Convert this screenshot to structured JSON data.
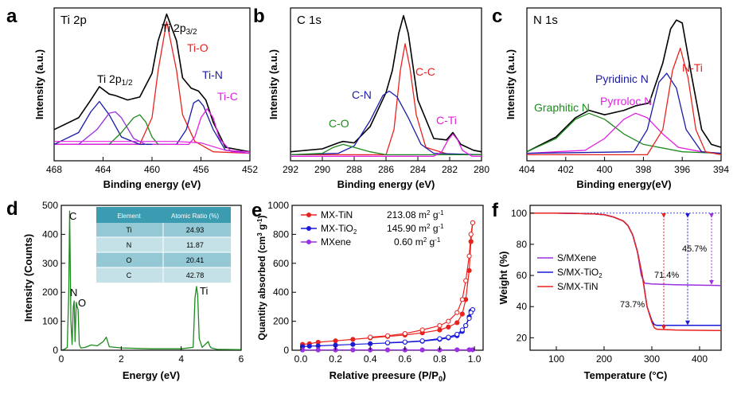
{
  "panels": [
    {
      "letter": "a",
      "title": "Ti 2p",
      "xlabel": "Binding energy (eV)",
      "ylabel": "Intensity (a.u.)",
      "xlim": [
        468,
        452
      ],
      "xticks": [
        "468",
        "464",
        "460",
        "456",
        "452"
      ],
      "peaks": [
        {
          "label": "Ti 2p",
          "sub": "3/2",
          "color": "#000000"
        },
        {
          "label": "Ti-O",
          "color": "#e8231f"
        },
        {
          "label": "Ti-N",
          "color": "#1a1aa8"
        },
        {
          "label": "Ti-C",
          "color": "#e020e0"
        },
        {
          "label": "Ti 2p",
          "sub": "1/2",
          "color": "#000000"
        }
      ]
    },
    {
      "letter": "b",
      "title": "C 1s",
      "xlabel": "Binding energy (eV)",
      "ylabel": "Intensity (a.u.)",
      "xlim": [
        292,
        280
      ],
      "xticks": [
        "292",
        "290",
        "288",
        "286",
        "284",
        "282",
        "280"
      ],
      "peaks": [
        {
          "label": "C-C",
          "color": "#e8231f"
        },
        {
          "label": "C-N",
          "color": "#1a1aa8"
        },
        {
          "label": "C-O",
          "color": "#1d8a1d"
        },
        {
          "label": "C-Ti",
          "color": "#e020e0"
        }
      ]
    },
    {
      "letter": "c",
      "title": "N 1s",
      "xlabel": "Binding energy(eV)",
      "ylabel": "Intensity (a.u.)",
      "xlim": [
        404,
        394
      ],
      "xticks": [
        "404",
        "402",
        "400",
        "398",
        "396",
        "394"
      ],
      "peaks": [
        {
          "label": "Pyridinic N",
          "color": "#1a1aa8"
        },
        {
          "label": "N-Ti",
          "color": "#e8231f"
        },
        {
          "label": "Graphitic N",
          "color": "#1d8a1d"
        },
        {
          "label": "Pyrroloc N",
          "color": "#e020e0"
        }
      ]
    },
    {
      "letter": "d",
      "xlabel": "Energy (eV)",
      "ylabel": "Intensity (Counts)",
      "xticks": [
        "0",
        "2",
        "4",
        "6"
      ],
      "yticks": [
        "0",
        "100",
        "200",
        "300",
        "400",
        "500"
      ],
      "peak_labels": [
        "C",
        "N",
        "O",
        "Ti"
      ],
      "table": {
        "headers": [
          "Element",
          "Atomic Ratio (%)"
        ],
        "rows": [
          [
            "Ti",
            "24.93"
          ],
          [
            "N",
            "11.87"
          ],
          [
            "O",
            "20.41"
          ],
          [
            "C",
            "42.78"
          ]
        ]
      }
    },
    {
      "letter": "e",
      "xlabel": "Relative preesure (P/P",
      "xlabel_sub": "0",
      "xlabel_end": ")",
      "ylabel": "Quantity absorbed (cm",
      "ylabel_sup": "3",
      "ylabel_end": " g",
      "ylabel_sup2": "-1",
      "ylabel_close": ")",
      "xticks": [
        "0.0",
        "0.2",
        "0.4",
        "0.6",
        "0.8",
        "1.0"
      ],
      "yticks": [
        "0",
        "200",
        "400",
        "600",
        "800",
        "1000"
      ],
      "legend": [
        {
          "name": "MX-TiN",
          "value": "213.08 m",
          "sup": "2",
          "unit": " g",
          "sup2": "-1",
          "color": "#e8231f"
        },
        {
          "name": "MX-TiO",
          "name_sub": "2",
          "value": "145.90 m",
          "sup": "2",
          "unit": " g",
          "sup2": "-1",
          "color": "#1a1ad8"
        },
        {
          "name": "MXene",
          "value": "0.60 m",
          "sup": "2",
          "unit": " g",
          "sup2": "-1",
          "color": "#9a30e0"
        }
      ]
    },
    {
      "letter": "f",
      "xlabel": "Temperature (°C)",
      "ylabel": "Weight (%)",
      "xticks": [
        "100",
        "200",
        "300",
        "400"
      ],
      "yticks": [
        "20",
        "40",
        "60",
        "80",
        "100"
      ],
      "legend": [
        {
          "name": "S/MXene",
          "color": "#9a30e0"
        },
        {
          "name": "S/MX-TiO",
          "name_sub": "2",
          "color": "#1a1ad8"
        },
        {
          "name": "S/MX-TiN",
          "color": "#e8231f"
        }
      ],
      "annotations": [
        "45.7%",
        "71.4%",
        "73.7%"
      ]
    }
  ],
  "chart_data": [
    {
      "panel": "a",
      "type": "line",
      "x_range": [
        468,
        452
      ],
      "series": [
        {
          "name": "Ti 2p",
          "x": [
            468,
            466,
            465,
            464.3,
            463.5,
            463,
            462,
            461,
            460,
            459.5,
            458.8,
            458,
            457.5,
            456.8,
            456.2,
            455.6,
            455,
            454,
            452
          ],
          "y": [
            0.2,
            0.28,
            0.4,
            0.49,
            0.44,
            0.43,
            0.4,
            0.42,
            0.58,
            0.8,
            0.98,
            0.8,
            0.55,
            0.48,
            0.46,
            0.4,
            0.25,
            0.08,
            0.05
          ]
        },
        {
          "name": "Ti-O",
          "x": [
            468,
            461,
            460,
            459.5,
            458.8,
            458,
            457.5,
            456.5,
            455,
            452
          ],
          "y": [
            0.1,
            0.1,
            0.28,
            0.6,
            0.93,
            0.6,
            0.3,
            0.12,
            0.05,
            0.04
          ]
        },
        {
          "name": "Ti-N",
          "x": [
            468,
            458,
            457.2,
            456.6,
            456.2,
            455.8,
            455,
            454,
            452
          ],
          "y": [
            0.1,
            0.1,
            0.2,
            0.38,
            0.4,
            0.36,
            0.2,
            0.06,
            0.04
          ]
        },
        {
          "name": "Ti-C",
          "x": [
            468,
            457,
            456.5,
            456,
            455.5,
            455,
            454.5,
            453.5,
            452
          ],
          "y": [
            0.1,
            0.1,
            0.15,
            0.28,
            0.34,
            0.28,
            0.14,
            0.05,
            0.04
          ]
        },
        {
          "name": "Ti 2p 1/2 (blue)",
          "x": [
            468,
            466,
            465,
            464.3,
            463.5,
            462.5,
            461,
            460
          ],
          "y": [
            0.1,
            0.18,
            0.32,
            0.39,
            0.3,
            0.15,
            0.1,
            0.1
          ]
        },
        {
          "name": "Ti 2p 1/2 (purple)",
          "x": [
            466,
            464.5,
            463.5,
            463,
            462.5,
            461.5,
            460.5
          ],
          "y": [
            0.1,
            0.2,
            0.31,
            0.32,
            0.28,
            0.14,
            0.1
          ]
        },
        {
          "name": "Ti 2p 1/2 (green)",
          "x": [
            463.5,
            462.5,
            461.5,
            461,
            460.5,
            460,
            459.5
          ],
          "y": [
            0.1,
            0.18,
            0.28,
            0.3,
            0.25,
            0.15,
            0.1
          ]
        }
      ]
    },
    {
      "panel": "b",
      "type": "line",
      "x_range": [
        292,
        280
      ],
      "series": [
        {
          "name": "C 1s",
          "x": [
            292,
            290,
            289,
            288.7,
            288,
            287,
            286,
            285.6,
            285.2,
            284.9,
            284.6,
            284,
            283,
            282.2,
            281.8,
            281.3,
            280.5,
            280
          ],
          "y": [
            0.05,
            0.07,
            0.11,
            0.12,
            0.11,
            0.22,
            0.45,
            0.6,
            0.85,
            0.97,
            0.85,
            0.4,
            0.14,
            0.13,
            0.18,
            0.1,
            0.06,
            0.05
          ]
        },
        {
          "name": "C-C",
          "x": [
            292,
            286,
            285.5,
            285.1,
            284.8,
            284.5,
            284.1,
            283.5,
            282,
            280
          ],
          "y": [
            0.03,
            0.03,
            0.2,
            0.6,
            0.78,
            0.62,
            0.3,
            0.08,
            0.03,
            0.03
          ]
        },
        {
          "name": "C-N",
          "x": [
            292,
            289,
            288,
            287,
            286.2,
            285.8,
            285.3,
            284.6,
            283.8,
            283,
            280
          ],
          "y": [
            0.03,
            0.04,
            0.09,
            0.26,
            0.43,
            0.46,
            0.42,
            0.28,
            0.1,
            0.04,
            0.03
          ]
        },
        {
          "name": "C-O",
          "x": [
            292,
            290,
            289.3,
            288.7,
            288,
            287,
            286,
            280
          ],
          "y": [
            0.03,
            0.04,
            0.08,
            0.1,
            0.08,
            0.05,
            0.03,
            0.03
          ]
        },
        {
          "name": "C-Ti",
          "x": [
            292,
            283,
            282.5,
            282.1,
            281.8,
            281.5,
            281.2,
            280.6,
            280
          ],
          "y": [
            0.02,
            0.02,
            0.05,
            0.13,
            0.17,
            0.13,
            0.06,
            0.02,
            0.02
          ]
        }
      ]
    },
    {
      "panel": "c",
      "type": "line",
      "x_range": [
        404,
        394
      ],
      "series": [
        {
          "name": "N 1s",
          "x": [
            404,
            402.5,
            401.5,
            400.8,
            400,
            399,
            398.4,
            397.7,
            397,
            396.6,
            396.3,
            396,
            395.5,
            395,
            394.5,
            394
          ],
          "y": [
            0.05,
            0.15,
            0.28,
            0.33,
            0.3,
            0.33,
            0.36,
            0.38,
            0.65,
            0.88,
            0.94,
            0.92,
            0.55,
            0.2,
            0.1,
            0.08
          ]
        },
        {
          "name": "Graphitic N",
          "x": [
            404,
            402.5,
            401.5,
            400.8,
            400,
            399,
            398,
            396,
            394
          ],
          "y": [
            0.05,
            0.14,
            0.27,
            0.31,
            0.27,
            0.17,
            0.1,
            0.05,
            0.04
          ]
        },
        {
          "name": "Pyrroloc N",
          "x": [
            404,
            401,
            400,
            399,
            398.4,
            397.8,
            397,
            396.2,
            395,
            394
          ],
          "y": [
            0.04,
            0.06,
            0.14,
            0.27,
            0.31,
            0.28,
            0.17,
            0.08,
            0.05,
            0.04
          ]
        },
        {
          "name": "Pyridinic N",
          "x": [
            404,
            398.5,
            397.8,
            397.2,
            396.8,
            396.3,
            395.8,
            395,
            394
          ],
          "y": [
            0.04,
            0.05,
            0.2,
            0.52,
            0.58,
            0.48,
            0.2,
            0.05,
            0.04
          ]
        },
        {
          "name": "N-Ti",
          "x": [
            404,
            397.8,
            397,
            396.5,
            396.1,
            395.7,
            395.3,
            394.8,
            394
          ],
          "y": [
            0.03,
            0.03,
            0.2,
            0.6,
            0.75,
            0.55,
            0.2,
            0.05,
            0.03
          ]
        }
      ]
    },
    {
      "panel": "d",
      "type": "line",
      "x_range": [
        0,
        6
      ],
      "y_range": [
        0,
        500
      ],
      "series": [
        {
          "name": "EDS",
          "x": [
            0,
            0.1,
            0.2,
            0.25,
            0.28,
            0.32,
            0.36,
            0.4,
            0.43,
            0.46,
            0.5,
            0.53,
            0.56,
            0.6,
            0.65,
            0.8,
            1.0,
            1.2,
            1.4,
            1.5,
            1.6,
            2.0,
            3.0,
            4.0,
            4.4,
            4.46,
            4.51,
            4.55,
            4.6,
            4.7,
            4.9,
            4.95,
            5.0,
            5.2,
            6.0
          ],
          "y": [
            0,
            3,
            10,
            200,
            480,
            100,
            20,
            150,
            170,
            30,
            165,
            150,
            140,
            20,
            8,
            10,
            18,
            15,
            30,
            45,
            12,
            8,
            5,
            5,
            10,
            180,
            220,
            190,
            40,
            10,
            30,
            15,
            8,
            3,
            2
          ]
        }
      ]
    },
    {
      "panel": "e",
      "type": "line",
      "x_range": [
        0,
        1
      ],
      "y_range": [
        0,
        1000
      ],
      "series": [
        {
          "name": "MX-TiN adsorption",
          "x": [
            0.01,
            0.05,
            0.1,
            0.2,
            0.3,
            0.4,
            0.5,
            0.6,
            0.7,
            0.8,
            0.85,
            0.9,
            0.93,
            0.95,
            0.97,
            0.98,
            0.99
          ],
          "y": [
            40,
            45,
            55,
            65,
            75,
            85,
            95,
            105,
            120,
            140,
            160,
            190,
            250,
            350,
            550,
            750,
            880
          ]
        },
        {
          "name": "MX-TiN desorption",
          "x": [
            0.99,
            0.98,
            0.97,
            0.95,
            0.93,
            0.9,
            0.85,
            0.8,
            0.7,
            0.6,
            0.5,
            0.4
          ],
          "y": [
            880,
            800,
            650,
            480,
            350,
            260,
            200,
            170,
            140,
            115,
            100,
            90
          ]
        },
        {
          "name": "MX-TiO2 adsorption",
          "x": [
            0.01,
            0.05,
            0.1,
            0.2,
            0.3,
            0.4,
            0.5,
            0.6,
            0.7,
            0.8,
            0.85,
            0.9,
            0.93,
            0.95,
            0.97,
            0.98,
            0.99
          ],
          "y": [
            25,
            28,
            30,
            35,
            40,
            45,
            50,
            55,
            62,
            75,
            85,
            100,
            130,
            170,
            230,
            270,
            280
          ]
        },
        {
          "name": "MX-TiO2 desorption",
          "x": [
            0.99,
            0.98,
            0.97,
            0.95,
            0.93,
            0.9,
            0.85,
            0.8,
            0.7,
            0.6,
            0.5
          ],
          "y": [
            280,
            260,
            220,
            170,
            140,
            110,
            90,
            80,
            65,
            57,
            52
          ]
        },
        {
          "name": "MXene",
          "x": [
            0.01,
            0.1,
            0.2,
            0.3,
            0.4,
            0.5,
            0.6,
            0.7,
            0.8,
            0.9,
            0.97,
            0.99
          ],
          "y": [
            2,
            2,
            2,
            2,
            2,
            2,
            2,
            2,
            2,
            3,
            3,
            3
          ]
        }
      ]
    },
    {
      "panel": "f",
      "type": "line",
      "x_range": [
        45,
        445
      ],
      "y_range": [
        12,
        105
      ],
      "series": [
        {
          "name": "S/MXene",
          "x": [
            45,
            100,
            150,
            180,
            200,
            220,
            240,
            250,
            260,
            270,
            278,
            285,
            300,
            350,
            400,
            445
          ],
          "y": [
            100,
            100,
            99.8,
            99.5,
            99,
            97.5,
            95,
            92,
            86,
            75,
            60,
            55,
            54.5,
            54,
            53.8,
            53.5
          ]
        },
        {
          "name": "S/MX-TiO2",
          "x": [
            45,
            100,
            150,
            180,
            200,
            220,
            240,
            250,
            260,
            270,
            280,
            290,
            300,
            305,
            310,
            350,
            400,
            445
          ],
          "y": [
            100,
            100,
            99.8,
            99.5,
            99,
            97.5,
            95,
            92,
            86,
            75,
            60,
            40,
            31,
            28.5,
            28,
            28,
            28,
            28
          ]
        },
        {
          "name": "S/MX-TiN",
          "x": [
            45,
            100,
            150,
            180,
            200,
            220,
            240,
            250,
            260,
            270,
            280,
            290,
            300,
            305,
            310,
            350,
            400,
            445
          ],
          "y": [
            100,
            100,
            99.8,
            99.5,
            99,
            97.5,
            95,
            92,
            86,
            75,
            60,
            40,
            30,
            26.5,
            25.5,
            25,
            24.8,
            24.6
          ]
        }
      ]
    }
  ]
}
